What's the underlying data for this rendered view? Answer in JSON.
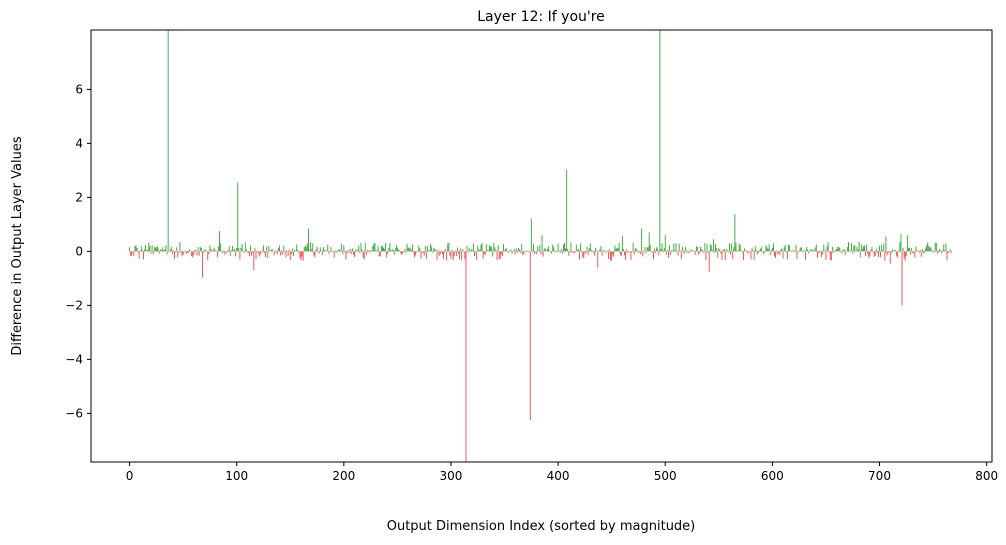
{
  "chart_data": {
    "type": "bar",
    "title": "Layer 12: If you're",
    "xlabel": "Output Dimension Index (sorted by magnitude)",
    "ylabel": "Difference in Output Layer Values",
    "xlim": [
      -36,
      805
    ],
    "ylim": [
      -7.8,
      8.2
    ],
    "xticks": [
      0,
      100,
      200,
      300,
      400,
      500,
      600,
      700,
      800
    ],
    "yticks": [
      -6,
      -4,
      -2,
      0,
      2,
      4,
      6
    ],
    "xtick_labels": [
      "0",
      "100",
      "200",
      "300",
      "400",
      "500",
      "600",
      "700",
      "800"
    ],
    "ytick_labels": [
      "−6",
      "−4",
      "−2",
      "0",
      "2",
      "4",
      "6"
    ],
    "grid": false,
    "colors": {
      "positive": "#2ca02c",
      "negative": "#e8413b"
    },
    "n_points": 768,
    "spikes": [
      {
        "x": 36,
        "y": 8.2
      },
      {
        "x": 68,
        "y": -0.97
      },
      {
        "x": 84,
        "y": 0.75
      },
      {
        "x": 101,
        "y": 2.55
      },
      {
        "x": 116,
        "y": -0.7
      },
      {
        "x": 167,
        "y": 0.85
      },
      {
        "x": 314,
        "y": -7.8
      },
      {
        "x": 374,
        "y": -6.25
      },
      {
        "x": 375,
        "y": 1.22
      },
      {
        "x": 385,
        "y": 0.6
      },
      {
        "x": 408,
        "y": 3.02
      },
      {
        "x": 437,
        "y": -0.6
      },
      {
        "x": 460,
        "y": 0.58
      },
      {
        "x": 478,
        "y": 0.85
      },
      {
        "x": 485,
        "y": 0.7
      },
      {
        "x": 495,
        "y": 8.2
      },
      {
        "x": 500,
        "y": 0.6
      },
      {
        "x": 541,
        "y": -0.75
      },
      {
        "x": 545,
        "y": 0.45
      },
      {
        "x": 565,
        "y": 1.38
      },
      {
        "x": 706,
        "y": 0.55
      },
      {
        "x": 710,
        "y": -0.45
      },
      {
        "x": 720,
        "y": 0.65
      },
      {
        "x": 721,
        "y": -2.0
      },
      {
        "x": 726,
        "y": 0.6
      }
    ]
  }
}
